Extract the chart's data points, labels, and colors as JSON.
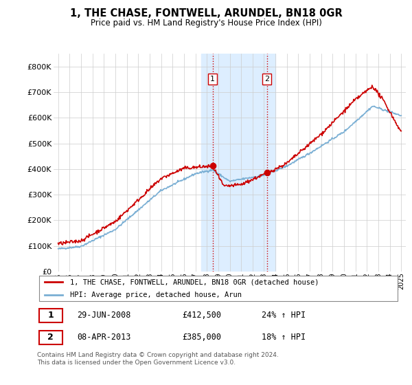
{
  "title": "1, THE CHASE, FONTWELL, ARUNDEL, BN18 0GR",
  "subtitle": "Price paid vs. HM Land Registry's House Price Index (HPI)",
  "background_color": "#ffffff",
  "plot_bg_color": "#ffffff",
  "grid_color": "#cccccc",
  "legend_label_red": "1, THE CHASE, FONTWELL, ARUNDEL, BN18 0GR (detached house)",
  "legend_label_blue": "HPI: Average price, detached house, Arun",
  "transaction1_date": "29-JUN-2008",
  "transaction1_price": "£412,500",
  "transaction1_hpi": "24% ↑ HPI",
  "transaction1_year": 2008.5,
  "transaction1_value": 412500,
  "transaction2_date": "08-APR-2013",
  "transaction2_price": "£385,000",
  "transaction2_hpi": "18% ↑ HPI",
  "transaction2_year": 2013.25,
  "transaction2_value": 385000,
  "footer": "Contains HM Land Registry data © Crown copyright and database right 2024.\nThis data is licensed under the Open Government Licence v3.0.",
  "ylim": [
    0,
    850000
  ],
  "yticks": [
    0,
    100000,
    200000,
    300000,
    400000,
    500000,
    600000,
    700000,
    800000
  ],
  "ytick_labels": [
    "£0",
    "£100K",
    "£200K",
    "£300K",
    "£400K",
    "£500K",
    "£600K",
    "£700K",
    "£800K"
  ],
  "shade_x1": 2007.5,
  "shade_x2": 2014.0,
  "red_color": "#cc0000",
  "blue_color": "#7aafd4",
  "shade_color": "#ddeeff",
  "xlim_left": 1994.6,
  "xlim_right": 2025.4
}
